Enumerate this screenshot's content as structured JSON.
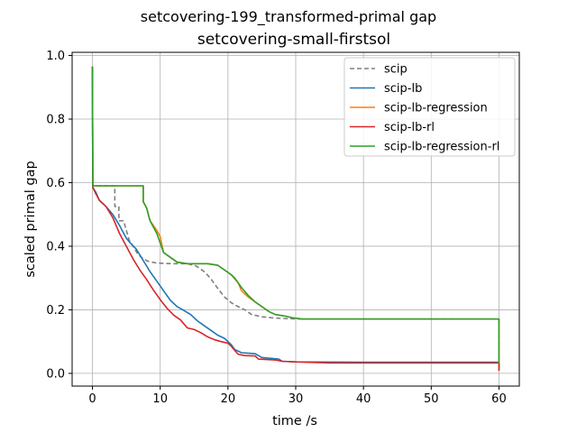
{
  "chart_data": {
    "type": "line",
    "suptitle": "setcovering-199_transformed-primal gap",
    "title": "setcovering-small-firstsol",
    "xlabel": "time /s",
    "ylabel": "scaled primal gap",
    "xlim": [
      -3,
      63
    ],
    "ylim": [
      -0.04,
      1.01
    ],
    "xticks": [
      0,
      10,
      20,
      30,
      40,
      50,
      60
    ],
    "yticks": [
      0.0,
      0.2,
      0.4,
      0.6,
      0.8,
      1.0
    ],
    "ytick_labels": [
      "0.0",
      "0.2",
      "0.4",
      "0.6",
      "0.8",
      "1.0"
    ],
    "grid": true,
    "legend_position": "top-right",
    "series": [
      {
        "name": "scip",
        "color": "#7f7f7f",
        "dash": "5,3",
        "points": [
          [
            0,
            0.965
          ],
          [
            0.05,
            0.59
          ],
          [
            3.3,
            0.59
          ],
          [
            3.3,
            0.525
          ],
          [
            3.9,
            0.525
          ],
          [
            3.9,
            0.48
          ],
          [
            4.6,
            0.48
          ],
          [
            5.0,
            0.45
          ],
          [
            5.4,
            0.42
          ],
          [
            6.0,
            0.4
          ],
          [
            6.7,
            0.375
          ],
          [
            7.5,
            0.36
          ],
          [
            8.3,
            0.352
          ],
          [
            9.5,
            0.347
          ],
          [
            12.0,
            0.345
          ],
          [
            14.0,
            0.345
          ],
          [
            15.3,
            0.338
          ],
          [
            16.5,
            0.32
          ],
          [
            17.4,
            0.3
          ],
          [
            18.4,
            0.27
          ],
          [
            19.5,
            0.24
          ],
          [
            20.5,
            0.222
          ],
          [
            21.5,
            0.21
          ],
          [
            22.5,
            0.2
          ],
          [
            23.5,
            0.185
          ],
          [
            25.0,
            0.178
          ],
          [
            27.0,
            0.174
          ],
          [
            29.0,
            0.172
          ],
          [
            31.0,
            0.171
          ],
          [
            40,
            0.171
          ],
          [
            50,
            0.171
          ],
          [
            60,
            0.171
          ],
          [
            60,
            0.012
          ]
        ]
      },
      {
        "name": "scip-lb",
        "color": "#1f77b4",
        "dash": "",
        "points": [
          [
            0,
            0.965
          ],
          [
            0.05,
            0.585
          ],
          [
            0.5,
            0.57
          ],
          [
            1.0,
            0.545
          ],
          [
            2.0,
            0.525
          ],
          [
            3.0,
            0.5
          ],
          [
            4.0,
            0.465
          ],
          [
            5.0,
            0.425
          ],
          [
            5.6,
            0.41
          ],
          [
            6.5,
            0.39
          ],
          [
            7.5,
            0.355
          ],
          [
            8.5,
            0.32
          ],
          [
            9.5,
            0.29
          ],
          [
            10.5,
            0.26
          ],
          [
            11.5,
            0.23
          ],
          [
            12.5,
            0.21
          ],
          [
            13.5,
            0.198
          ],
          [
            14.5,
            0.185
          ],
          [
            15.5,
            0.165
          ],
          [
            16.5,
            0.15
          ],
          [
            17.5,
            0.135
          ],
          [
            18.5,
            0.12
          ],
          [
            19.5,
            0.11
          ],
          [
            20.5,
            0.09
          ],
          [
            21.0,
            0.075
          ],
          [
            22.0,
            0.065
          ],
          [
            24.0,
            0.062
          ],
          [
            25.0,
            0.05
          ],
          [
            27.5,
            0.045
          ],
          [
            28.0,
            0.038
          ],
          [
            30,
            0.036
          ],
          [
            40,
            0.035
          ],
          [
            50,
            0.035
          ],
          [
            60,
            0.035
          ],
          [
            60,
            0.012
          ]
        ]
      },
      {
        "name": "scip-lb-regression",
        "color": "#ff7f0e",
        "dash": "",
        "points": [
          [
            0,
            0.965
          ],
          [
            0.05,
            0.59
          ],
          [
            7.5,
            0.59
          ],
          [
            7.5,
            0.54
          ],
          [
            8.0,
            0.52
          ],
          [
            8.5,
            0.48
          ],
          [
            9.5,
            0.45
          ],
          [
            10.0,
            0.43
          ],
          [
            10.5,
            0.38
          ],
          [
            11.5,
            0.365
          ],
          [
            12.5,
            0.35
          ],
          [
            14,
            0.345
          ],
          [
            17,
            0.345
          ],
          [
            18.5,
            0.34
          ],
          [
            19.5,
            0.325
          ],
          [
            20.5,
            0.31
          ],
          [
            21.5,
            0.285
          ],
          [
            22.0,
            0.26
          ],
          [
            23,
            0.24
          ],
          [
            24,
            0.225
          ],
          [
            25,
            0.21
          ],
          [
            26,
            0.195
          ],
          [
            27,
            0.185
          ],
          [
            28.5,
            0.18
          ],
          [
            29.5,
            0.175
          ],
          [
            31,
            0.171
          ],
          [
            40,
            0.171
          ],
          [
            50,
            0.171
          ],
          [
            60,
            0.171
          ],
          [
            60,
            0.012
          ]
        ]
      },
      {
        "name": "scip-lb-rl",
        "color": "#d62728",
        "dash": "",
        "points": [
          [
            0,
            0.965
          ],
          [
            0.05,
            0.585
          ],
          [
            0.5,
            0.565
          ],
          [
            1.0,
            0.545
          ],
          [
            2.0,
            0.525
          ],
          [
            3.0,
            0.49
          ],
          [
            4.0,
            0.44
          ],
          [
            5.0,
            0.4
          ],
          [
            6.0,
            0.36
          ],
          [
            7.0,
            0.325
          ],
          [
            8.0,
            0.295
          ],
          [
            9.0,
            0.262
          ],
          [
            10.0,
            0.232
          ],
          [
            11.0,
            0.205
          ],
          [
            12.0,
            0.183
          ],
          [
            13.0,
            0.168
          ],
          [
            14.0,
            0.143
          ],
          [
            15.0,
            0.138
          ],
          [
            16.0,
            0.128
          ],
          [
            17.0,
            0.115
          ],
          [
            18.0,
            0.106
          ],
          [
            19.0,
            0.1
          ],
          [
            20.0,
            0.095
          ],
          [
            20.5,
            0.085
          ],
          [
            21.5,
            0.06
          ],
          [
            22.5,
            0.056
          ],
          [
            24.0,
            0.055
          ],
          [
            24.5,
            0.045
          ],
          [
            27.0,
            0.042
          ],
          [
            28.0,
            0.038
          ],
          [
            30,
            0.036
          ],
          [
            35,
            0.033
          ],
          [
            40,
            0.033
          ],
          [
            50,
            0.033
          ],
          [
            60,
            0.033
          ],
          [
            60,
            0.008
          ]
        ]
      },
      {
        "name": "scip-lb-regression-rl",
        "color": "#2ca02c",
        "dash": "",
        "points": [
          [
            0,
            0.965
          ],
          [
            0.05,
            0.59
          ],
          [
            7.5,
            0.59
          ],
          [
            7.5,
            0.54
          ],
          [
            8.0,
            0.52
          ],
          [
            8.5,
            0.48
          ],
          [
            9.5,
            0.44
          ],
          [
            10.0,
            0.41
          ],
          [
            10.5,
            0.38
          ],
          [
            11.5,
            0.365
          ],
          [
            12.5,
            0.35
          ],
          [
            14,
            0.345
          ],
          [
            17,
            0.345
          ],
          [
            18.5,
            0.34
          ],
          [
            19.5,
            0.325
          ],
          [
            20.5,
            0.31
          ],
          [
            21.0,
            0.3
          ],
          [
            22,
            0.27
          ],
          [
            23,
            0.245
          ],
          [
            24,
            0.225
          ],
          [
            25,
            0.21
          ],
          [
            26,
            0.195
          ],
          [
            27,
            0.185
          ],
          [
            28.5,
            0.18
          ],
          [
            29.5,
            0.175
          ],
          [
            31,
            0.171
          ],
          [
            40,
            0.171
          ],
          [
            50,
            0.171
          ],
          [
            60,
            0.171
          ],
          [
            60,
            0.03
          ]
        ]
      }
    ]
  }
}
